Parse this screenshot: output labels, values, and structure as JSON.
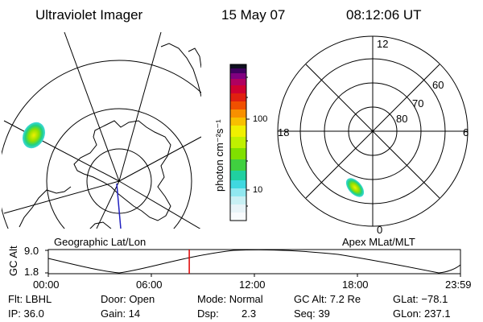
{
  "header": {
    "instrument": "Ultraviolet Imager",
    "date": "15 May 07",
    "time": "08:12:06 UT"
  },
  "left_map": {
    "label": "Geographic Lat/Lon"
  },
  "colorbar": {
    "ticks": [
      "100",
      "10"
    ],
    "unit_label": "photon cm⁻²s⁻¹"
  },
  "right_map": {
    "label": "Apex MLat/MLT",
    "mlt_labels": [
      "12",
      "18",
      "6",
      "0"
    ],
    "mlat_labels": [
      "60",
      "70",
      "80"
    ]
  },
  "timeline": {
    "ylabel": "GC Alt",
    "ymax": "9.0",
    "ymin": "1.8",
    "time_ticks": [
      "00:00",
      "06:00",
      "12:00",
      "18:00",
      "23:59"
    ],
    "current_time_fraction": 0.342
  },
  "status": {
    "flt": "Flt: LBHL",
    "ip": "IP: 36.0",
    "door": "Door: Open",
    "gain": "Gain: 14",
    "mode": "Mode: Normal",
    "dsp_label": "Dsp:",
    "dsp_value": "2.3",
    "gc_alt": "GC Alt: 7.2 Re",
    "seq": "Seq: 39",
    "glat": "GLat: −78.1",
    "glon": "GLon: 237.1"
  },
  "colors": {
    "background": "#ffffff",
    "foreground": "#000000",
    "current_time_marker": "#e00000",
    "meridian": "#2020c0"
  }
}
